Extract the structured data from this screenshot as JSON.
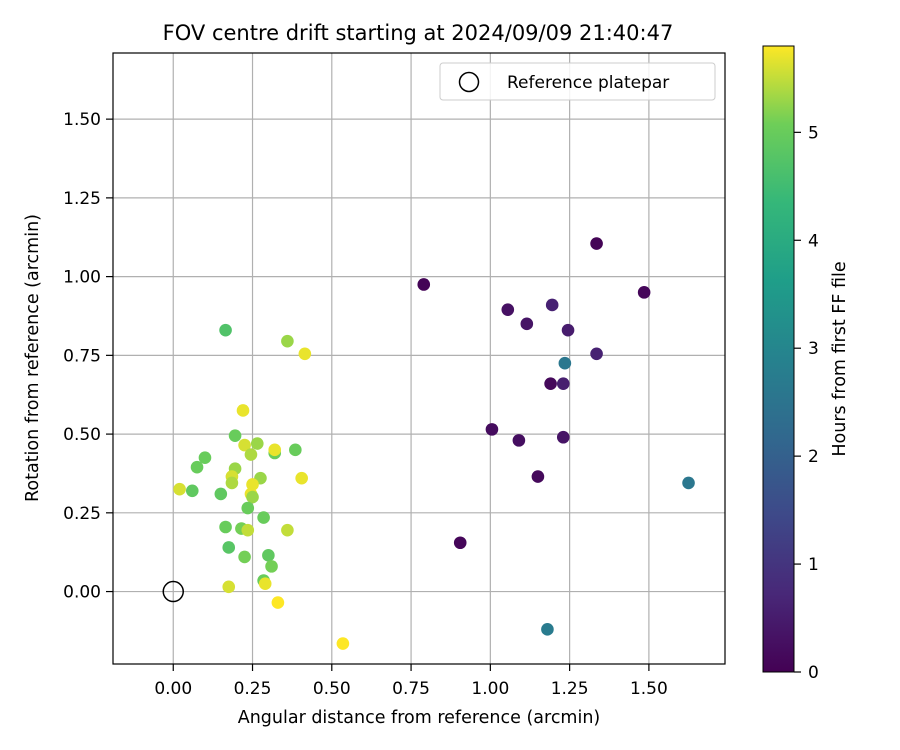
{
  "chart_data": {
    "type": "scatter",
    "title": "FOV centre drift starting at 2024/09/09 21:40:47",
    "xlabel": "Angular distance from reference (arcmin)",
    "ylabel": "Rotation from reference (arcmin)",
    "xlim": [
      -0.19,
      1.74
    ],
    "ylim": [
      -0.23,
      1.71
    ],
    "xticks": [
      0.0,
      0.25,
      0.5,
      0.75,
      1.0,
      1.25,
      1.5
    ],
    "xtick_labels": [
      "0.00",
      "0.25",
      "0.50",
      "0.75",
      "1.00",
      "1.25",
      "1.50"
    ],
    "yticks": [
      0.0,
      0.25,
      0.5,
      0.75,
      1.0,
      1.25,
      1.5
    ],
    "ytick_labels": [
      "0.00",
      "0.25",
      "0.50",
      "0.75",
      "1.00",
      "1.25",
      "1.50"
    ],
    "grid": true,
    "colormap": "viridis",
    "colorbar": {
      "label": "Hours from first FF file",
      "min": 0,
      "max": 5.8,
      "ticks": [
        0,
        1,
        2,
        3,
        4,
        5
      ],
      "tick_labels": [
        "0",
        "1",
        "2",
        "3",
        "4",
        "5"
      ]
    },
    "legend": {
      "location": "top-right",
      "entries": [
        "Reference platepar"
      ]
    },
    "reference_point": {
      "x": 0.0,
      "y": 0.0,
      "label": "Reference platepar"
    },
    "points": [
      {
        "x": 0.79,
        "y": 0.975,
        "h": 0.05
      },
      {
        "x": 1.335,
        "y": 1.105,
        "h": 0.05
      },
      {
        "x": 1.485,
        "y": 0.95,
        "h": 0.1
      },
      {
        "x": 1.055,
        "y": 0.895,
        "h": 0.3
      },
      {
        "x": 1.115,
        "y": 0.85,
        "h": 0.35
      },
      {
        "x": 1.195,
        "y": 0.91,
        "h": 0.6
      },
      {
        "x": 1.245,
        "y": 0.83,
        "h": 0.5
      },
      {
        "x": 1.335,
        "y": 0.755,
        "h": 0.6
      },
      {
        "x": 1.235,
        "y": 0.725,
        "h": 2.6
      },
      {
        "x": 1.19,
        "y": 0.66,
        "h": 0.15
      },
      {
        "x": 1.23,
        "y": 0.66,
        "h": 0.55
      },
      {
        "x": 1.005,
        "y": 0.515,
        "h": 0.2
      },
      {
        "x": 1.09,
        "y": 0.48,
        "h": 0.25
      },
      {
        "x": 1.23,
        "y": 0.49,
        "h": 0.35
      },
      {
        "x": 1.15,
        "y": 0.365,
        "h": 0.15
      },
      {
        "x": 0.905,
        "y": 0.155,
        "h": 0.1
      },
      {
        "x": 1.625,
        "y": 0.345,
        "h": 2.6
      },
      {
        "x": 1.18,
        "y": -0.12,
        "h": 2.7
      },
      {
        "x": 0.165,
        "y": 0.83,
        "h": 4.7
      },
      {
        "x": 0.36,
        "y": 0.795,
        "h": 5.3
      },
      {
        "x": 0.415,
        "y": 0.755,
        "h": 5.7
      },
      {
        "x": 0.22,
        "y": 0.575,
        "h": 5.7
      },
      {
        "x": 0.195,
        "y": 0.495,
        "h": 5.0
      },
      {
        "x": 0.225,
        "y": 0.465,
        "h": 5.6
      },
      {
        "x": 0.265,
        "y": 0.47,
        "h": 5.3
      },
      {
        "x": 0.245,
        "y": 0.435,
        "h": 5.4
      },
      {
        "x": 0.32,
        "y": 0.44,
        "h": 5.0
      },
      {
        "x": 0.32,
        "y": 0.45,
        "h": 5.7
      },
      {
        "x": 0.385,
        "y": 0.45,
        "h": 5.0
      },
      {
        "x": 0.1,
        "y": 0.425,
        "h": 5.0
      },
      {
        "x": 0.075,
        "y": 0.395,
        "h": 5.0
      },
      {
        "x": 0.195,
        "y": 0.39,
        "h": 5.3
      },
      {
        "x": 0.185,
        "y": 0.365,
        "h": 5.6
      },
      {
        "x": 0.185,
        "y": 0.345,
        "h": 5.4
      },
      {
        "x": 0.275,
        "y": 0.36,
        "h": 5.3
      },
      {
        "x": 0.405,
        "y": 0.36,
        "h": 5.7
      },
      {
        "x": 0.02,
        "y": 0.325,
        "h": 5.6
      },
      {
        "x": 0.06,
        "y": 0.32,
        "h": 4.9
      },
      {
        "x": 0.15,
        "y": 0.31,
        "h": 4.9
      },
      {
        "x": 0.245,
        "y": 0.31,
        "h": 5.7
      },
      {
        "x": 0.25,
        "y": 0.34,
        "h": 5.7
      },
      {
        "x": 0.25,
        "y": 0.3,
        "h": 5.3
      },
      {
        "x": 0.235,
        "y": 0.265,
        "h": 5.0
      },
      {
        "x": 0.285,
        "y": 0.235,
        "h": 5.0
      },
      {
        "x": 0.36,
        "y": 0.195,
        "h": 5.5
      },
      {
        "x": 0.165,
        "y": 0.205,
        "h": 5.0
      },
      {
        "x": 0.215,
        "y": 0.2,
        "h": 5.1
      },
      {
        "x": 0.235,
        "y": 0.195,
        "h": 5.5
      },
      {
        "x": 0.175,
        "y": 0.14,
        "h": 4.8
      },
      {
        "x": 0.225,
        "y": 0.11,
        "h": 5.1
      },
      {
        "x": 0.3,
        "y": 0.115,
        "h": 4.9
      },
      {
        "x": 0.31,
        "y": 0.08,
        "h": 5.1
      },
      {
        "x": 0.285,
        "y": 0.035,
        "h": 5.0
      },
      {
        "x": 0.29,
        "y": 0.025,
        "h": 5.7
      },
      {
        "x": 0.175,
        "y": 0.015,
        "h": 5.6
      },
      {
        "x": 0.33,
        "y": -0.035,
        "h": 5.8
      },
      {
        "x": 0.535,
        "y": -0.165,
        "h": 5.8
      }
    ]
  }
}
